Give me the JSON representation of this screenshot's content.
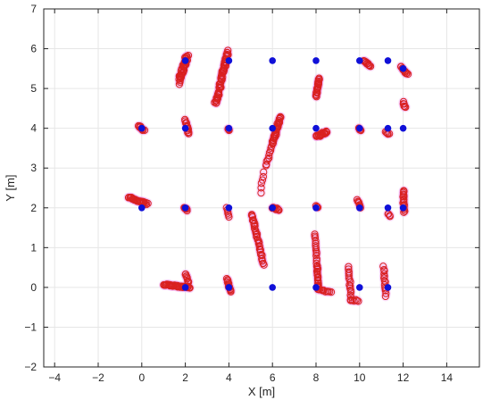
{
  "chart_data": {
    "type": "scatter",
    "xlabel": "X [m]",
    "ylabel": "Y [m]",
    "xlim": [
      -4.5,
      15.5
    ],
    "ylim": [
      -2,
      7
    ],
    "xticks": [
      -4,
      -2,
      0,
      2,
      4,
      6,
      8,
      10,
      12,
      14
    ],
    "yticks": [
      -2,
      -1,
      0,
      1,
      2,
      3,
      4,
      5,
      6,
      7
    ],
    "grid": true,
    "colors": {
      "reference": "#1010d8",
      "measured": "#d92020",
      "halo": "#f0a8f0"
    },
    "series": [
      {
        "marker": "filled-circle",
        "points": [
          [
            2.0,
            5.7
          ],
          [
            4.0,
            5.7
          ],
          [
            6.0,
            5.7
          ],
          [
            8.0,
            5.7
          ],
          [
            10.0,
            5.7
          ],
          [
            11.3,
            5.7
          ],
          [
            12.0,
            5.5
          ],
          [
            0.0,
            4.0
          ],
          [
            2.0,
            4.0
          ],
          [
            4.0,
            4.0
          ],
          [
            6.0,
            4.0
          ],
          [
            8.0,
            4.0
          ],
          [
            10.0,
            4.0
          ],
          [
            11.3,
            4.0
          ],
          [
            12.0,
            4.0
          ],
          [
            0.0,
            2.0
          ],
          [
            2.0,
            2.0
          ],
          [
            4.0,
            2.0
          ],
          [
            6.0,
            2.0
          ],
          [
            8.0,
            2.0
          ],
          [
            10.0,
            2.0
          ],
          [
            11.3,
            2.0
          ],
          [
            12.0,
            2.0
          ],
          [
            2.0,
            0.0
          ],
          [
            4.0,
            0.0
          ],
          [
            6.0,
            0.0
          ],
          [
            8.0,
            0.0
          ],
          [
            10.0,
            0.0
          ],
          [
            11.3,
            0.0
          ]
        ]
      },
      {
        "marker": "open-circle",
        "clusters": [
          {
            "p0": [
              1.7,
              5.2
            ],
            "p1": [
              2.1,
              5.85
            ],
            "n": 50,
            "spread": 0.1
          },
          {
            "p0": [
              3.4,
              4.6
            ],
            "p1": [
              3.95,
              5.95
            ],
            "n": 70,
            "spread": 0.08
          },
          {
            "p0": [
              8.0,
              4.8
            ],
            "p1": [
              8.15,
              5.25
            ],
            "n": 24,
            "spread": 0.05
          },
          {
            "p0": [
              10.2,
              5.7
            ],
            "p1": [
              10.5,
              5.55
            ],
            "n": 12,
            "spread": 0.04
          },
          {
            "p0": [
              11.9,
              5.55
            ],
            "p1": [
              12.2,
              5.35
            ],
            "n": 12,
            "spread": 0.04
          },
          {
            "p0": [
              12.0,
              4.65
            ],
            "p1": [
              12.1,
              4.5
            ],
            "n": 6,
            "spread": 0.04
          },
          {
            "p0": [
              -0.15,
              4.05
            ],
            "p1": [
              0.1,
              3.95
            ],
            "n": 12,
            "spread": 0.04
          },
          {
            "p0": [
              2.0,
              4.2
            ],
            "p1": [
              2.15,
              3.85
            ],
            "n": 14,
            "spread": 0.05
          },
          {
            "p0": [
              3.95,
              4.0
            ],
            "p1": [
              4.0,
              3.95
            ],
            "n": 4,
            "spread": 0.04
          },
          {
            "p0": [
              6.0,
              3.6
            ],
            "p1": [
              6.35,
              4.3
            ],
            "n": 40,
            "spread": 0.06
          },
          {
            "p0": [
              5.7,
              3.05
            ],
            "p1": [
              5.95,
              3.55
            ],
            "n": 10,
            "spread": 0.04
          },
          {
            "p0": [
              5.45,
              2.4
            ],
            "p1": [
              5.6,
              2.9
            ],
            "n": 6,
            "spread": 0.04
          },
          {
            "p0": [
              8.0,
              3.8
            ],
            "p1": [
              8.5,
              3.9
            ],
            "n": 26,
            "spread": 0.06
          },
          {
            "p0": [
              9.95,
              4.0
            ],
            "p1": [
              10.05,
              3.95
            ],
            "n": 5,
            "spread": 0.03
          },
          {
            "p0": [
              11.2,
              3.9
            ],
            "p1": [
              11.35,
              3.85
            ],
            "n": 5,
            "spread": 0.03
          },
          {
            "p0": [
              -0.6,
              2.25
            ],
            "p1": [
              0.25,
              2.1
            ],
            "n": 30,
            "spread": 0.04
          },
          {
            "p0": [
              1.95,
              2.0
            ],
            "p1": [
              2.1,
              1.95
            ],
            "n": 6,
            "spread": 0.03
          },
          {
            "p0": [
              3.9,
              2.0
            ],
            "p1": [
              4.0,
              1.78
            ],
            "n": 6,
            "spread": 0.03
          },
          {
            "p0": [
              5.05,
              1.85
            ],
            "p1": [
              5.6,
              0.55
            ],
            "n": 40,
            "spread": 0.05
          },
          {
            "p0": [
              6.0,
              2.0
            ],
            "p1": [
              6.3,
              1.95
            ],
            "n": 10,
            "spread": 0.03
          },
          {
            "p0": [
              8.0,
              2.05
            ],
            "p1": [
              8.1,
              2.0
            ],
            "n": 4,
            "spread": 0.03
          },
          {
            "p0": [
              9.9,
              2.2
            ],
            "p1": [
              10.05,
              2.0
            ],
            "n": 8,
            "spread": 0.03
          },
          {
            "p0": [
              11.3,
              1.85
            ],
            "p1": [
              11.4,
              1.8
            ],
            "n": 4,
            "spread": 0.03
          },
          {
            "p0": [
              12.0,
              2.45
            ],
            "p1": [
              12.05,
              1.9
            ],
            "n": 18,
            "spread": 0.05
          },
          {
            "p0": [
              1.0,
              0.07
            ],
            "p1": [
              2.2,
              0.0
            ],
            "n": 40,
            "spread": 0.04
          },
          {
            "p0": [
              2.0,
              0.35
            ],
            "p1": [
              2.15,
              0.1
            ],
            "n": 10,
            "spread": 0.04
          },
          {
            "p0": [
              3.9,
              0.2
            ],
            "p1": [
              4.1,
              -0.1
            ],
            "n": 14,
            "spread": 0.04
          },
          {
            "p0": [
              7.95,
              1.35
            ],
            "p1": [
              8.05,
              0.5
            ],
            "n": 16,
            "spread": 0.04
          },
          {
            "p0": [
              8.05,
              0.5
            ],
            "p1": [
              8.1,
              -0.05
            ],
            "n": 20,
            "spread": 0.04
          },
          {
            "p0": [
              8.1,
              -0.05
            ],
            "p1": [
              8.7,
              -0.12
            ],
            "n": 10,
            "spread": 0.03
          },
          {
            "p0": [
              9.5,
              0.5
            ],
            "p1": [
              9.6,
              -0.3
            ],
            "n": 16,
            "spread": 0.04
          },
          {
            "p0": [
              9.6,
              -0.3
            ],
            "p1": [
              9.95,
              -0.35
            ],
            "n": 6,
            "spread": 0.03
          },
          {
            "p0": [
              11.1,
              0.5
            ],
            "p1": [
              11.2,
              -0.2
            ],
            "n": 14,
            "spread": 0.04
          }
        ]
      }
    ]
  }
}
